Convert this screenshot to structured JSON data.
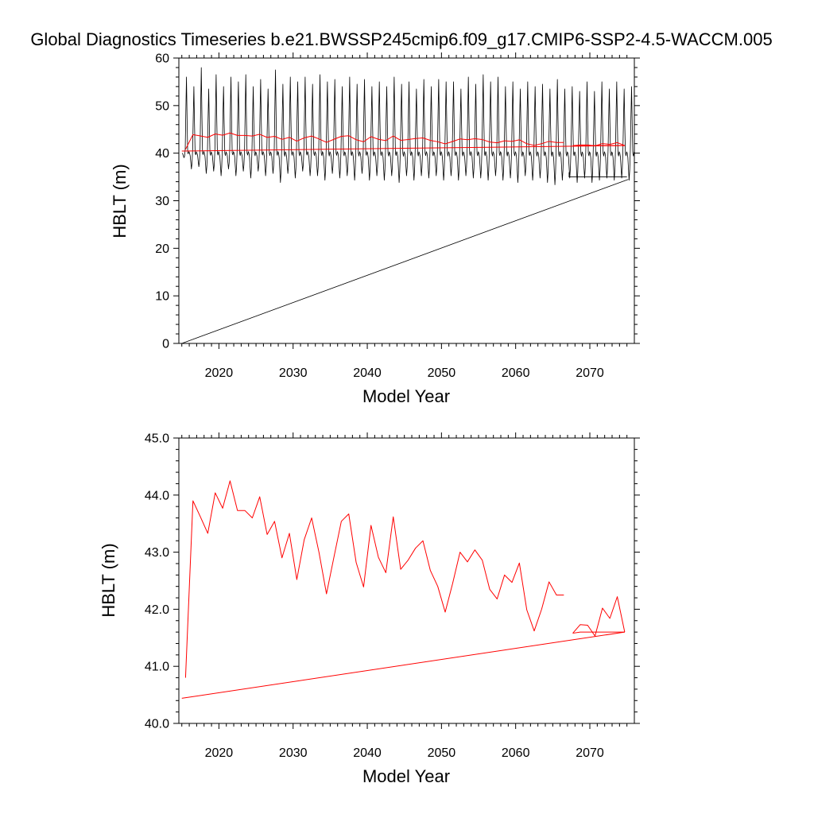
{
  "page_title": "Global Diagnostics Timeseries b.e21.BWSSP245cmip6.f09_g17.CMIP6-SSP2-4.5-WACCM.005",
  "colors": {
    "monthly": "#000000",
    "annual": "#ff0000",
    "axis": "#000000"
  },
  "chart_data": [
    {
      "type": "line",
      "title": "Global Diagnostics Timeseries b.e21.BWSSP245cmip6.f09_g17.CMIP6-SSP2-4.5-WACCM.005",
      "xlabel": "Model Year",
      "ylabel": "HBLT (m)",
      "xlim": [
        2014.6,
        2076.0
      ],
      "ylim": [
        0,
        60
      ],
      "xticks": [
        2020,
        2030,
        2040,
        2050,
        2060,
        2070
      ],
      "xtick_labels": [
        "2020",
        "2030",
        "2040",
        "2050",
        "2060",
        "2070"
      ],
      "yticks": [
        0,
        10,
        20,
        30,
        40,
        50,
        60
      ],
      "ytick_labels": [
        "0",
        "10",
        "20",
        "30",
        "40",
        "50",
        "60"
      ],
      "series": [
        {
          "name": "monthly",
          "color": "#000000",
          "kind": "monthly-cycle",
          "start_year": 2015,
          "years": 61,
          "summer_peaks": [
            56.0,
            54.0,
            58.0,
            53.5,
            56.5,
            54.0,
            56.0,
            55.0,
            56.5,
            54.0,
            55.5,
            53.5,
            57.5,
            54.5,
            56.0,
            55.0,
            56.0,
            54.5,
            56.5,
            55.0,
            55.5,
            54.0,
            56.0,
            54.5,
            55.5,
            54.0,
            55.0,
            54.0,
            56.0,
            54.5,
            55.0,
            53.5,
            55.5,
            54.0,
            55.5,
            55.0,
            55.0,
            53.5,
            56.0,
            54.5,
            56.5,
            55.0,
            56.0,
            54.0,
            55.0,
            53.5,
            55.0,
            54.0,
            54.5,
            53.5,
            55.5,
            53.5,
            54.0,
            53.0,
            55.0,
            53.0,
            55.0,
            53.5,
            55.0,
            53.5,
            54.0
          ],
          "winter_troughs": [
            39.0,
            36.5,
            37.0,
            35.5,
            36.0,
            35.0,
            36.5,
            35.0,
            36.0,
            34.5,
            36.0,
            35.0,
            35.5,
            33.5,
            35.5,
            34.5,
            36.0,
            35.0,
            35.0,
            34.0,
            35.5,
            34.5,
            35.0,
            34.0,
            35.5,
            34.0,
            35.0,
            34.0,
            35.0,
            33.5,
            35.0,
            34.0,
            35.0,
            34.5,
            35.0,
            34.0,
            35.0,
            34.0,
            35.0,
            34.5,
            34.5,
            34.0,
            35.0,
            34.0,
            34.5,
            33.5,
            35.0,
            34.0,
            34.5,
            33.5,
            33.0,
            34.0,
            34.5,
            33.5,
            34.5,
            33.5,
            34.0,
            34.5,
            34.0,
            34.5,
            34.0
          ],
          "baseline": 40.0,
          "wrap_segment": {
            "x": [
              2075.0,
              2067.2,
              2067.2
            ],
            "y": [
              35.0,
              35.0,
              36.0
            ]
          },
          "closing_segment": {
            "x": [
              2075.2,
              2015.0
            ],
            "y": [
              34.5,
              0
            ]
          }
        },
        {
          "name": "annual",
          "color": "#ff0000",
          "x": [
            2015.5,
            2016.5,
            2017.5,
            2018.5,
            2019.5,
            2020.5,
            2021.5,
            2022.5,
            2023.5,
            2024.5,
            2025.5,
            2026.5,
            2027.5,
            2028.5,
            2029.5,
            2030.5,
            2031.5,
            2032.5,
            2033.5,
            2034.5,
            2035.5,
            2036.5,
            2037.5,
            2038.5,
            2039.5,
            2040.5,
            2041.5,
            2042.5,
            2043.5,
            2044.5,
            2045.5,
            2046.5,
            2047.5,
            2048.5,
            2049.5,
            2050.5,
            2051.5,
            2052.5,
            2053.5,
            2054.5,
            2055.5,
            2056.5,
            2057.5,
            2058.5,
            2059.5,
            2060.5,
            2061.5,
            2062.5,
            2063.5,
            2064.5,
            2065.5,
            2066.5
          ],
          "y": [
            40.8,
            43.9,
            43.62,
            43.33,
            44.04,
            43.77,
            44.25,
            43.73,
            43.73,
            43.6,
            43.97,
            43.31,
            43.54,
            42.9,
            43.33,
            42.52,
            43.22,
            43.6,
            42.99,
            42.27,
            42.91,
            43.54,
            43.67,
            42.82,
            42.39,
            43.47,
            42.91,
            42.64,
            43.62,
            42.7,
            42.86,
            43.07,
            43.2,
            42.68,
            42.4,
            41.95,
            42.45,
            43.0,
            42.83,
            43.04,
            42.86,
            42.35,
            42.18,
            42.6,
            42.47,
            42.81,
            41.99,
            41.62,
            42.0,
            42.48,
            42.25,
            42.25
          ],
          "tail_x": [
            2067.7,
            2068.7,
            2069.7,
            2070.7,
            2071.7,
            2072.7,
            2073.7,
            2074.7
          ],
          "tail_y": [
            41.58,
            41.73,
            41.72,
            41.53,
            42.02,
            41.84,
            42.22,
            41.6
          ],
          "wrap_segment": {
            "x": [
              2074.7,
              2068.7,
              2067.7
            ],
            "y": [
              41.6,
              41.6,
              41.58
            ]
          },
          "closing_segment": {
            "x": [
              2074.7,
              2015.0
            ],
            "y": [
              41.6,
              40.44
            ]
          }
        }
      ]
    },
    {
      "type": "line",
      "title": "",
      "xlabel": "Model Year",
      "ylabel": "HBLT (m)",
      "xlim": [
        2014.6,
        2076.0
      ],
      "ylim": [
        40.0,
        45.0
      ],
      "xticks": [
        2020,
        2030,
        2040,
        2050,
        2060,
        2070
      ],
      "xtick_labels": [
        "2020",
        "2030",
        "2040",
        "2050",
        "2060",
        "2070"
      ],
      "yticks": [
        40,
        41,
        42,
        43,
        44,
        45
      ],
      "ytick_labels": [
        "40.0",
        "41.0",
        "42.0",
        "43.0",
        "44.0",
        "45.0"
      ],
      "series": [
        {
          "name": "annual",
          "color": "#ff0000",
          "x": [
            2015.5,
            2016.5,
            2017.5,
            2018.5,
            2019.5,
            2020.5,
            2021.5,
            2022.5,
            2023.5,
            2024.5,
            2025.5,
            2026.5,
            2027.5,
            2028.5,
            2029.5,
            2030.5,
            2031.5,
            2032.5,
            2033.5,
            2034.5,
            2035.5,
            2036.5,
            2037.5,
            2038.5,
            2039.5,
            2040.5,
            2041.5,
            2042.5,
            2043.5,
            2044.5,
            2045.5,
            2046.5,
            2047.5,
            2048.5,
            2049.5,
            2050.5,
            2051.5,
            2052.5,
            2053.5,
            2054.5,
            2055.5,
            2056.5,
            2057.5,
            2058.5,
            2059.5,
            2060.5,
            2061.5,
            2062.5,
            2063.5,
            2064.5,
            2065.5,
            2066.5
          ],
          "y": [
            40.8,
            43.9,
            43.62,
            43.33,
            44.04,
            43.77,
            44.25,
            43.73,
            43.73,
            43.6,
            43.97,
            43.31,
            43.54,
            42.9,
            43.33,
            42.52,
            43.22,
            43.6,
            42.99,
            42.27,
            42.91,
            43.54,
            43.67,
            42.82,
            42.39,
            43.47,
            42.91,
            42.64,
            43.62,
            42.7,
            42.86,
            43.07,
            43.2,
            42.68,
            42.4,
            41.95,
            42.45,
            43.0,
            42.83,
            43.04,
            42.86,
            42.35,
            42.18,
            42.6,
            42.47,
            42.81,
            41.99,
            41.62,
            42.0,
            42.48,
            42.25,
            42.25
          ],
          "tail_x": [
            2067.7,
            2068.7,
            2069.7,
            2070.7,
            2071.7,
            2072.7,
            2073.7,
            2074.7
          ],
          "tail_y": [
            41.58,
            41.73,
            41.72,
            41.53,
            42.02,
            41.84,
            42.22,
            41.6
          ],
          "wrap_segment": {
            "x": [
              2074.7,
              2068.7,
              2067.7
            ],
            "y": [
              41.6,
              41.6,
              41.58
            ]
          },
          "closing_segment": {
            "x": [
              2074.7,
              2015.0
            ],
            "y": [
              41.6,
              40.44
            ]
          }
        }
      ]
    }
  ]
}
